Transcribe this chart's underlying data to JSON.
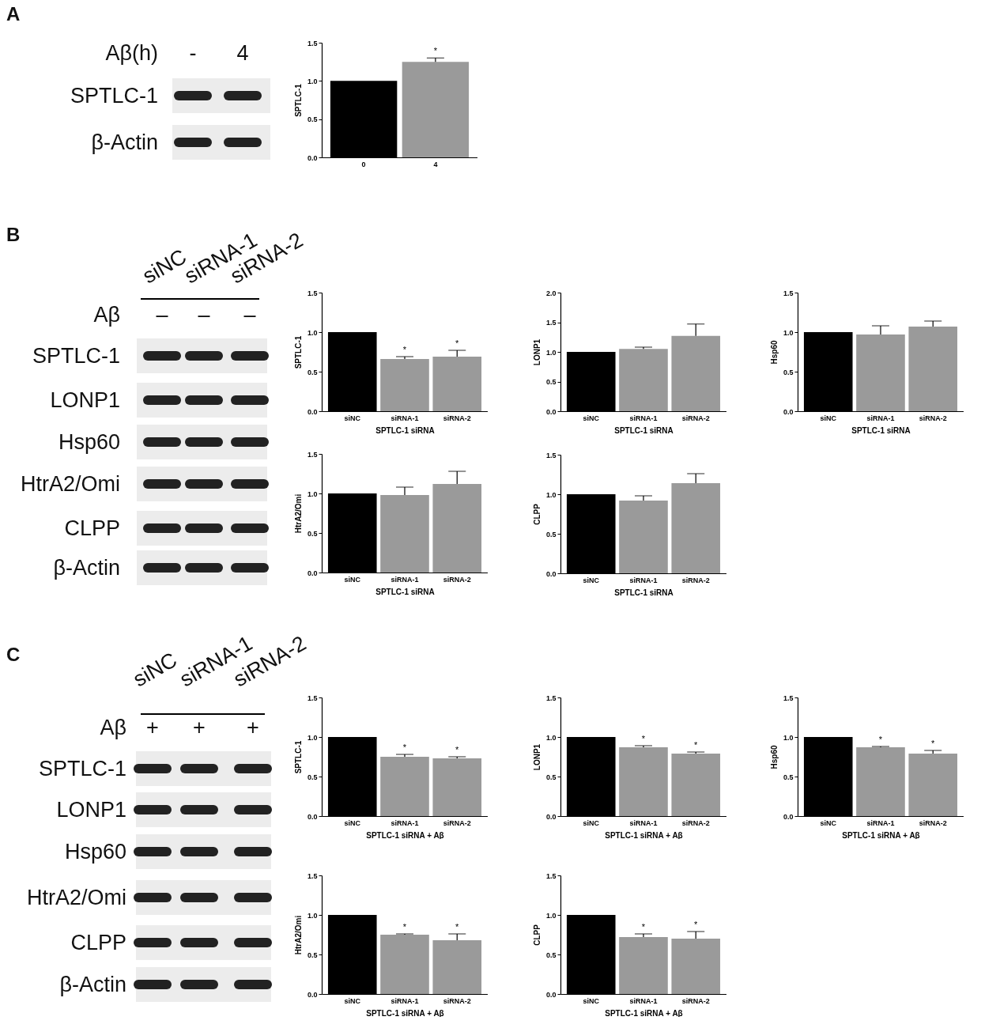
{
  "chart_data": [
    {
      "type": "other",
      "title": "A",
      "ylabel": "Aβ(h)",
      "annotations": [
        "-",
        "4"
      ],
      "y_categories": [
        "SPTLC-1",
        "β-Actin"
      ]
    },
    {
      "type": "bar",
      "categories": [
        "0",
        "4"
      ],
      "values": [
        1,
        1.25
      ],
      "errors": [
        null,
        [
          1.25,
          1.3
        ]
      ],
      "colors": [
        "#000000",
        "#9a9a9a"
      ],
      "ylabel": "SPTLC-1",
      "ylim": [
        0,
        1.5
      ],
      "yticks": [
        {
          "value": 0,
          "label": "0.0"
        },
        {
          "value": 0.5,
          "label": "0.5"
        },
        {
          "value": 1,
          "label": "1.0"
        },
        {
          "value": 1.5,
          "label": "1.5"
        }
      ],
      "annotations": [
        {
          "text": "*",
          "x": "4",
          "y": 1.3
        }
      ],
      "grid": false
    },
    {
      "type": "other",
      "title": "B",
      "categories": [
        "siNC",
        "siRNA-1",
        "siRNA-2"
      ],
      "ylabel": "Aβ",
      "annotations": [
        "–",
        "–",
        "–"
      ],
      "y_categories": [
        "SPTLC-1",
        "LONP1",
        "Hsp60",
        "HtrA2/Omi",
        "CLPP",
        "β-Actin"
      ]
    },
    {
      "type": "bar",
      "categories": [
        "siNC",
        "siRNA-1",
        "siRNA-2"
      ],
      "values": [
        1,
        0.66,
        0.69
      ],
      "errors": [
        null,
        [
          0.66,
          0.69
        ],
        [
          0.69,
          0.77
        ]
      ],
      "colors": [
        "#000000",
        "#9a9a9a",
        "#9a9a9a"
      ],
      "ylabel": "SPTLC-1",
      "xlabel": "SPTLC-1 siRNA",
      "ylim": [
        0,
        1.5
      ],
      "yticks": [
        {
          "value": 0,
          "label": "0.0"
        },
        {
          "value": 0.5,
          "label": "0.5"
        },
        {
          "value": 1,
          "label": "1.0"
        },
        {
          "value": 1.5,
          "label": "1.5"
        }
      ],
      "annotations": [
        {
          "text": "*",
          "x": "siRNA-1",
          "y": 0.69
        },
        {
          "text": "*",
          "x": "siRNA-2",
          "y": 0.77
        }
      ],
      "grid": false
    },
    {
      "type": "bar",
      "categories": [
        "siNC",
        "siRNA-1",
        "siRNA-2"
      ],
      "values": [
        1,
        1.05,
        1.27
      ],
      "errors": [
        null,
        [
          1.05,
          1.08
        ],
        [
          1.27,
          1.47
        ]
      ],
      "colors": [
        "#000000",
        "#9a9a9a",
        "#9a9a9a"
      ],
      "ylabel": "LONP1",
      "xlabel": "SPTLC-1 siRNA",
      "ylim": [
        0,
        2
      ],
      "yticks": [
        {
          "value": 0,
          "label": "0.0"
        },
        {
          "value": 0.5,
          "label": "0.5"
        },
        {
          "value": 1,
          "label": "1.0"
        },
        {
          "value": 1.5,
          "label": "1.5"
        },
        {
          "value": 2,
          "label": "2.0"
        }
      ],
      "grid": false
    },
    {
      "type": "bar",
      "categories": [
        "siNC",
        "siRNA-1",
        "siRNA-2"
      ],
      "values": [
        1,
        0.97,
        1.07
      ],
      "errors": [
        null,
        [
          0.97,
          1.08
        ],
        [
          1.07,
          1.14
        ]
      ],
      "colors": [
        "#000000",
        "#9a9a9a",
        "#9a9a9a"
      ],
      "ylabel": "Hsp60",
      "xlabel": "SPTLC-1 siRNA",
      "ylim": [
        0,
        1.5
      ],
      "yticks": [
        {
          "value": 0,
          "label": "0.0"
        },
        {
          "value": 0.5,
          "label": "0.5"
        },
        {
          "value": 1,
          "label": "1.0"
        },
        {
          "value": 1.5,
          "label": "1.5"
        }
      ],
      "grid": false
    },
    {
      "type": "bar",
      "categories": [
        "siNC",
        "siRNA-1",
        "siRNA-2"
      ],
      "values": [
        1,
        0.98,
        1.12
      ],
      "errors": [
        null,
        [
          0.98,
          1.08
        ],
        [
          1.12,
          1.28
        ]
      ],
      "colors": [
        "#000000",
        "#9a9a9a",
        "#9a9a9a"
      ],
      "ylabel": "HtrA2/Omi",
      "xlabel": "SPTLC-1 siRNA",
      "ylim": [
        0,
        1.5
      ],
      "yticks": [
        {
          "value": 0,
          "label": "0.0"
        },
        {
          "value": 0.5,
          "label": "0.5"
        },
        {
          "value": 1,
          "label": "1.0"
        },
        {
          "value": 1.5,
          "label": "1.5"
        }
      ],
      "grid": false
    },
    {
      "type": "bar",
      "categories": [
        "siNC",
        "siRNA-1",
        "siRNA-2"
      ],
      "values": [
        1,
        0.92,
        1.14
      ],
      "errors": [
        null,
        [
          0.92,
          0.98
        ],
        [
          1.14,
          1.26
        ]
      ],
      "colors": [
        "#000000",
        "#9a9a9a",
        "#9a9a9a"
      ],
      "ylabel": "CLPP",
      "xlabel": "SPTLC-1 siRNA",
      "ylim": [
        0,
        1.5
      ],
      "yticks": [
        {
          "value": 0,
          "label": "0.0"
        },
        {
          "value": 0.5,
          "label": "0.5"
        },
        {
          "value": 1,
          "label": "1.0"
        },
        {
          "value": 1.5,
          "label": "1.5"
        }
      ],
      "grid": false
    },
    {
      "type": "other",
      "title": "C",
      "categories": [
        "siNC",
        "siRNA-1",
        "siRNA-2"
      ],
      "ylabel": "Aβ",
      "annotations": [
        "+",
        "+",
        "+"
      ],
      "y_categories": [
        "SPTLC-1",
        "LONP1",
        "Hsp60",
        "HtrA2/Omi",
        "CLPP",
        "β-Actin"
      ]
    },
    {
      "type": "bar",
      "categories": [
        "siNC",
        "siRNA-1",
        "siRNA-2"
      ],
      "values": [
        1,
        0.75,
        0.73
      ],
      "errors": [
        null,
        [
          0.75,
          0.78
        ],
        [
          0.73,
          0.75
        ]
      ],
      "colors": [
        "#000000",
        "#9a9a9a",
        "#9a9a9a"
      ],
      "ylabel": "SPTLC-1",
      "xlabel": "SPTLC-1 siRNA + Aβ",
      "ylim": [
        0,
        1.5
      ],
      "yticks": [
        {
          "value": 0,
          "label": "0.0"
        },
        {
          "value": 0.5,
          "label": "0.5"
        },
        {
          "value": 1,
          "label": "1.0"
        },
        {
          "value": 1.5,
          "label": "1.5"
        }
      ],
      "annotations": [
        {
          "text": "*",
          "x": "siRNA-1",
          "y": 0.78
        },
        {
          "text": "*",
          "x": "siRNA-2",
          "y": 0.75
        }
      ],
      "grid": false
    },
    {
      "type": "bar",
      "categories": [
        "siNC",
        "siRNA-1",
        "siRNA-2"
      ],
      "values": [
        1,
        0.87,
        0.79
      ],
      "errors": [
        null,
        [
          0.87,
          0.89
        ],
        [
          0.79,
          0.81
        ]
      ],
      "colors": [
        "#000000",
        "#9a9a9a",
        "#9a9a9a"
      ],
      "ylabel": "LONP1",
      "xlabel": "SPTLC-1 siRNA + Aβ",
      "ylim": [
        0,
        1.5
      ],
      "yticks": [
        {
          "value": 0,
          "label": "0.0"
        },
        {
          "value": 0.5,
          "label": "0.5"
        },
        {
          "value": 1,
          "label": "1.0"
        },
        {
          "value": 1.5,
          "label": "1.5"
        }
      ],
      "annotations": [
        {
          "text": "*",
          "x": "siRNA-1",
          "y": 0.89
        },
        {
          "text": "*",
          "x": "siRNA-2",
          "y": 0.81
        }
      ],
      "grid": false
    },
    {
      "type": "bar",
      "categories": [
        "siNC",
        "siRNA-1",
        "siRNA-2"
      ],
      "values": [
        1,
        0.87,
        0.79
      ],
      "errors": [
        null,
        [
          0.87,
          0.88
        ],
        [
          0.79,
          0.83
        ]
      ],
      "colors": [
        "#000000",
        "#9a9a9a",
        "#9a9a9a"
      ],
      "ylabel": "Hsp60",
      "xlabel": "SPTLC-1 siRNA + Aβ",
      "ylim": [
        0,
        1.5
      ],
      "yticks": [
        {
          "value": 0,
          "label": "0.0"
        },
        {
          "value": 0.5,
          "label": "0.5"
        },
        {
          "value": 1,
          "label": "1.0"
        },
        {
          "value": 1.5,
          "label": "1.5"
        }
      ],
      "annotations": [
        {
          "text": "*",
          "x": "siRNA-1",
          "y": 0.88
        },
        {
          "text": "*",
          "x": "siRNA-2",
          "y": 0.83
        }
      ],
      "grid": false
    },
    {
      "type": "bar",
      "categories": [
        "siNC",
        "siRNA-1",
        "siRNA-2"
      ],
      "values": [
        1,
        0.75,
        0.68
      ],
      "errors": [
        null,
        [
          0.75,
          0.76
        ],
        [
          0.68,
          0.76
        ]
      ],
      "colors": [
        "#000000",
        "#9a9a9a",
        "#9a9a9a"
      ],
      "ylabel": "HtrA2/Omi",
      "xlabel": "SPTLC-1 siRNA + Aβ",
      "ylim": [
        0,
        1.5
      ],
      "yticks": [
        {
          "value": 0,
          "label": "0.0"
        },
        {
          "value": 0.5,
          "label": "0.5"
        },
        {
          "value": 1,
          "label": "1.0"
        },
        {
          "value": 1.5,
          "label": "1.5"
        }
      ],
      "annotations": [
        {
          "text": "*",
          "x": "siRNA-1",
          "y": 0.76
        },
        {
          "text": "*",
          "x": "siRNA-2",
          "y": 0.76
        }
      ],
      "grid": false
    },
    {
      "type": "bar",
      "categories": [
        "siNC",
        "siRNA-1",
        "siRNA-2"
      ],
      "values": [
        1,
        0.72,
        0.7
      ],
      "errors": [
        null,
        [
          0.72,
          0.76
        ],
        [
          0.7,
          0.79
        ]
      ],
      "colors": [
        "#000000",
        "#9a9a9a",
        "#9a9a9a"
      ],
      "ylabel": "CLPP",
      "xlabel": "SPTLC-1 siRNA + Aβ",
      "ylim": [
        0,
        1.5
      ],
      "yticks": [
        {
          "value": 0,
          "label": "0.0"
        },
        {
          "value": 0.5,
          "label": "0.5"
        },
        {
          "value": 1,
          "label": "1.0"
        },
        {
          "value": 1.5,
          "label": "1.5"
        }
      ],
      "annotations": [
        {
          "text": "*",
          "x": "siRNA-1",
          "y": 0.76
        },
        {
          "text": "*",
          "x": "siRNA-2",
          "y": 0.79
        }
      ],
      "grid": false
    }
  ]
}
